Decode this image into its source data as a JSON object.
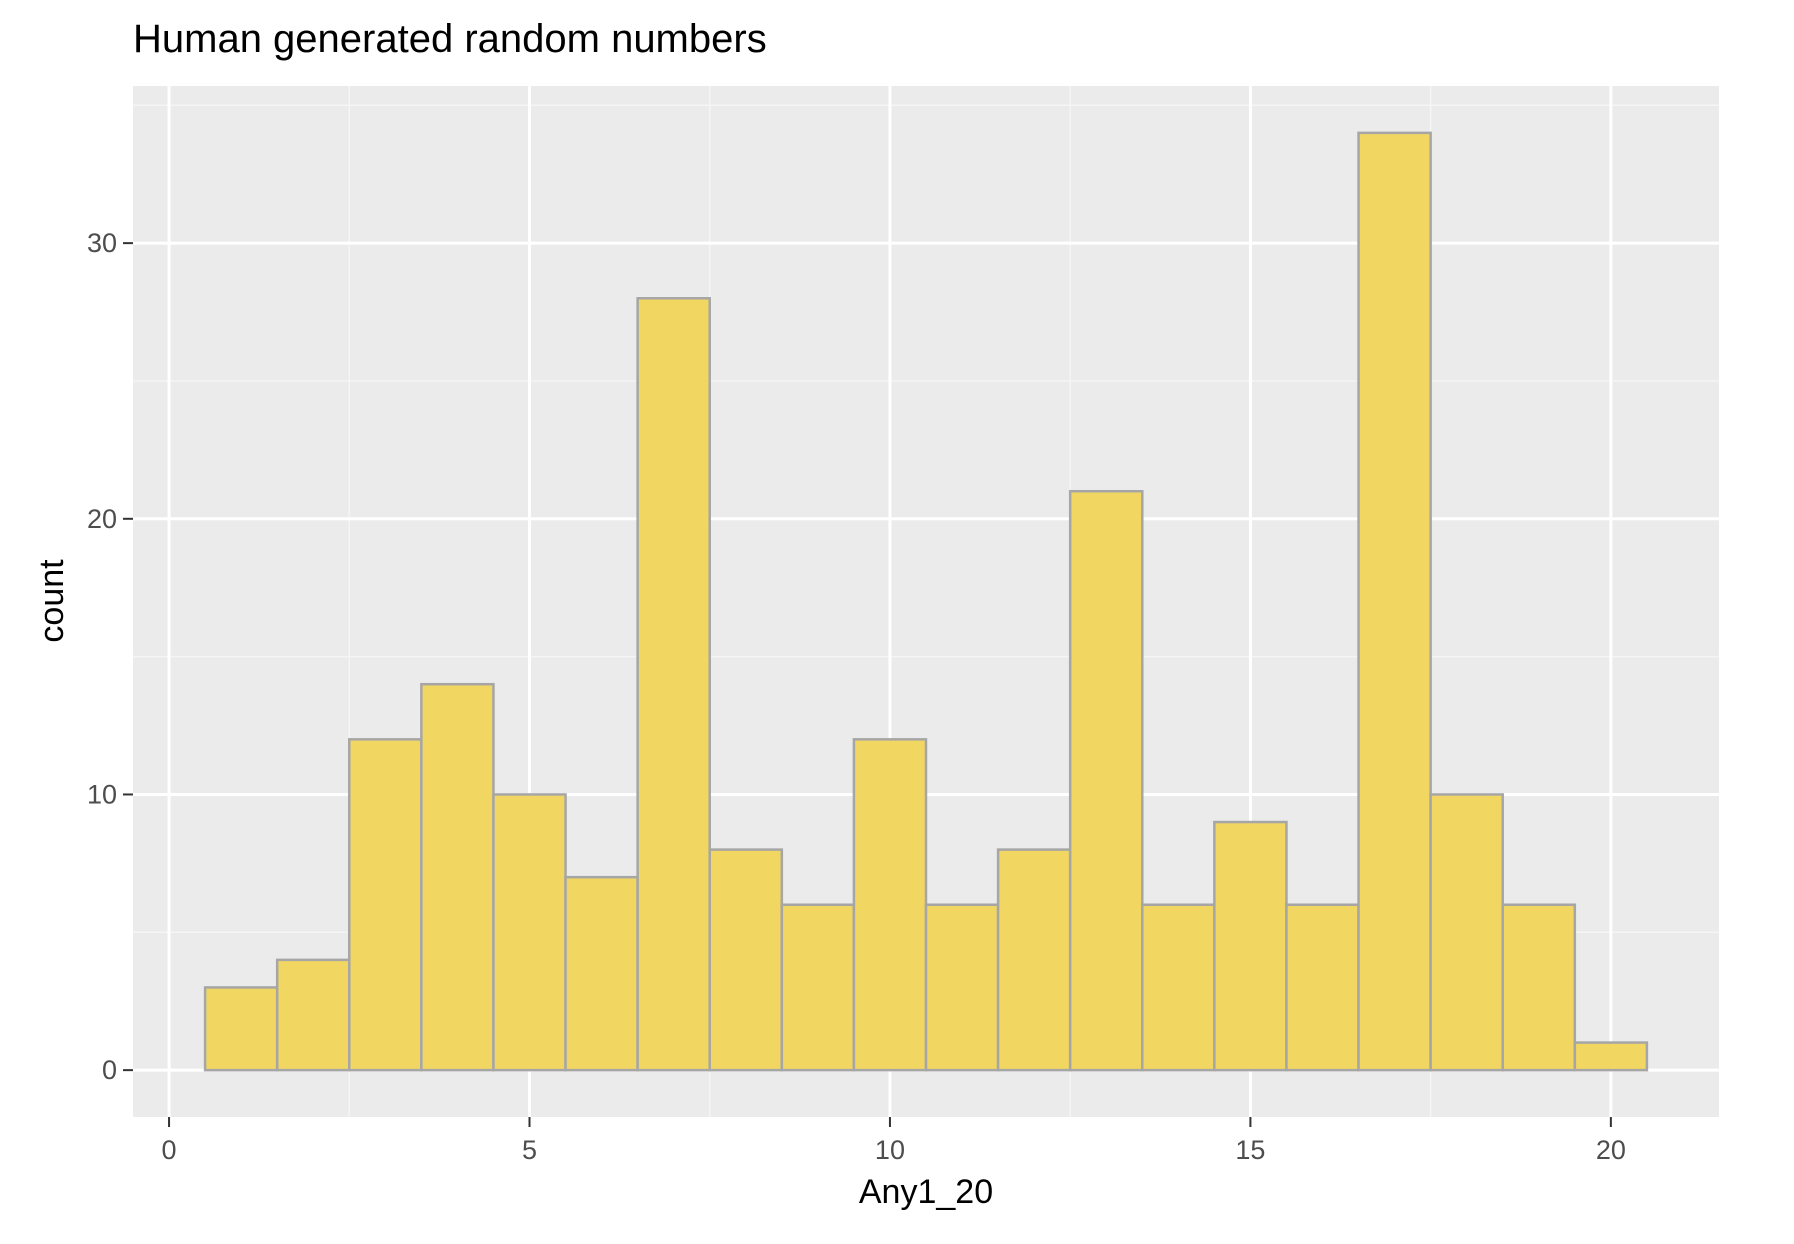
{
  "chart_data": {
    "type": "bar",
    "title": "Human generated random numbers",
    "xlabel": "Any1_20",
    "ylabel": "count",
    "x": [
      1,
      2,
      3,
      4,
      5,
      6,
      7,
      8,
      9,
      10,
      11,
      12,
      13,
      14,
      15,
      16,
      17,
      18,
      19,
      20
    ],
    "values": [
      3,
      4,
      12,
      14,
      10,
      7,
      28,
      8,
      6,
      12,
      6,
      8,
      21,
      6,
      9,
      6,
      34,
      10,
      6,
      1
    ],
    "bin_width": 1,
    "xlim": [
      -0.5,
      21.5
    ],
    "ylim": [
      -1.7,
      35.7
    ],
    "x_ticks": [
      0,
      5,
      10,
      15,
      20
    ],
    "y_ticks": [
      0,
      10,
      20,
      30
    ],
    "x_tick_labels": [
      "0",
      "5",
      "10",
      "15",
      "20"
    ],
    "y_tick_labels": [
      "0",
      "10",
      "20",
      "30"
    ],
    "grid": true,
    "legend": "none",
    "colors": {
      "bar_fill": "#f2d662",
      "bar_stroke": "#a6a6a6",
      "panel_background": "#ebebeb",
      "grid_major": "#ffffff",
      "grid_minor": "#f5f5f5",
      "tick_text": "#4d4d4d",
      "tick_mark": "#333333"
    }
  }
}
